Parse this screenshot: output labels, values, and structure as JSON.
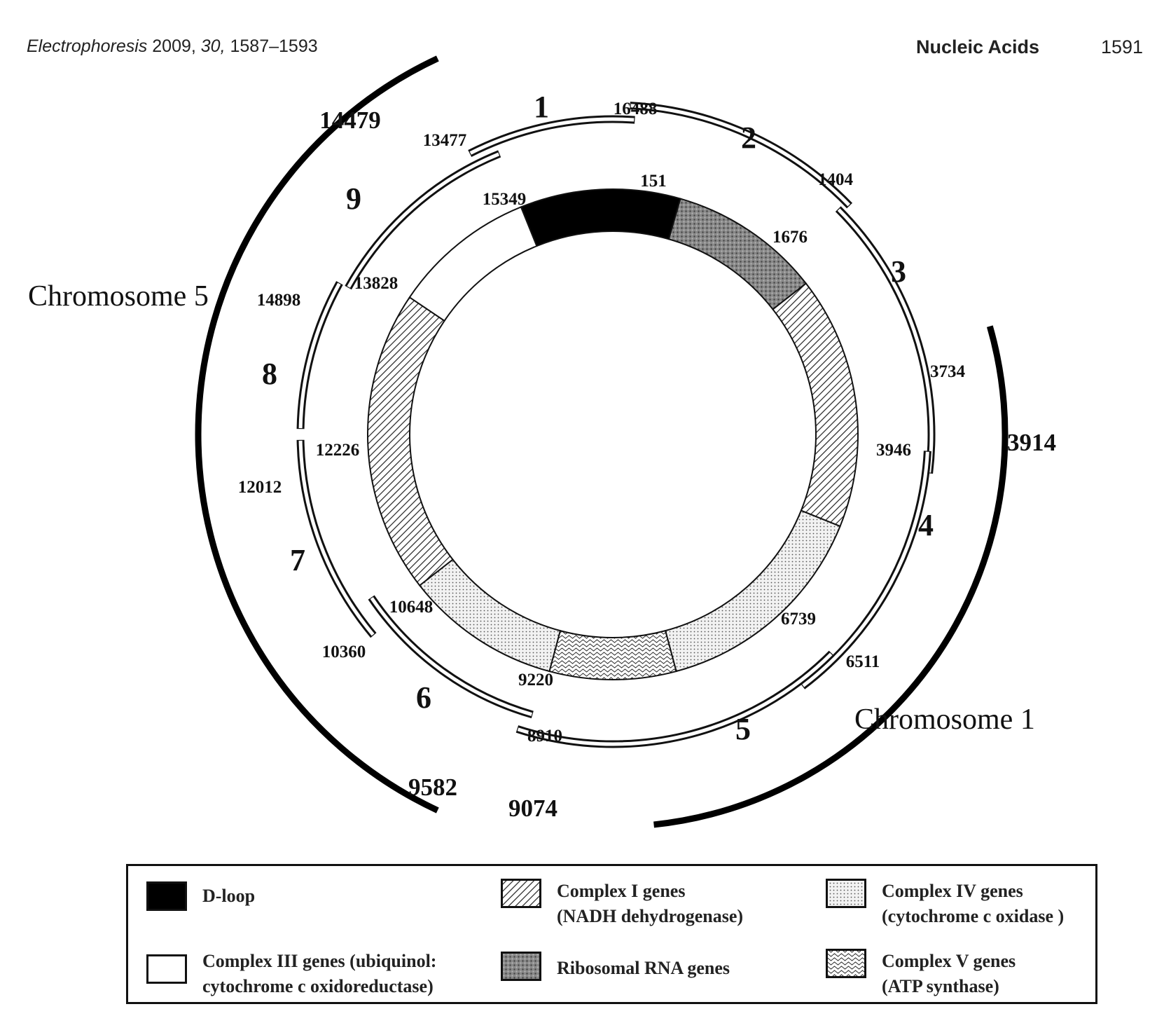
{
  "header": {
    "journal": "Electrophoresis",
    "year": "2009,",
    "volume": "30,",
    "pages": "1587–1593",
    "section": "Nucleic Acids",
    "page_number": "1591"
  },
  "diagram": {
    "inner_ring": {
      "labels": [
        "151",
        "1676",
        "3946",
        "6739",
        "9220",
        "10648",
        "12226",
        "13828",
        "15349"
      ]
    },
    "fragments": [
      {
        "number": "1",
        "start": "14898",
        "end": "16488"
      },
      {
        "number": "2",
        "start": "16488",
        "end": "1676"
      },
      {
        "number": "3",
        "start": "1404",
        "end": "3946"
      },
      {
        "number": "4",
        "start": "3734",
        "end": "6739"
      },
      {
        "number": "5",
        "start": "6511",
        "end": "9220"
      },
      {
        "number": "6",
        "start": "8910",
        "end": "10648"
      },
      {
        "number": "7",
        "start": "10360",
        "end": "12226"
      },
      {
        "number": "8",
        "start": "12012",
        "end": "13828"
      },
      {
        "number": "9",
        "start": "13477",
        "end": "15349"
      }
    ],
    "standalone_labels": [
      "1404",
      "3734",
      "6511",
      "8910",
      "10360",
      "12012",
      "13477",
      "14898",
      "16488"
    ],
    "chromosomes": [
      {
        "name": "Chromosome 5",
        "start": "9582",
        "end": "14479"
      },
      {
        "name": "Chromosome 1",
        "start": "3914",
        "end": "9074"
      }
    ]
  },
  "legend": {
    "items": [
      {
        "label": "D-loop",
        "pattern": "solid-black"
      },
      {
        "label": "Complex I genes",
        "sub": "(NADH dehydrogenase)",
        "pattern": "diagonal-hatch"
      },
      {
        "label": "Complex IV genes",
        "sub": "(cytochrome c oxidase )",
        "pattern": "fine-dots"
      },
      {
        "label": "Complex III genes (ubiquinol:",
        "sub": "cytochrome c oxidoreductase)",
        "pattern": "white"
      },
      {
        "label": "Ribosomal RNA genes",
        "pattern": "dark-stipple"
      },
      {
        "label": "Complex V genes",
        "sub": "(ATP synthase)",
        "pattern": "wavy"
      }
    ]
  }
}
